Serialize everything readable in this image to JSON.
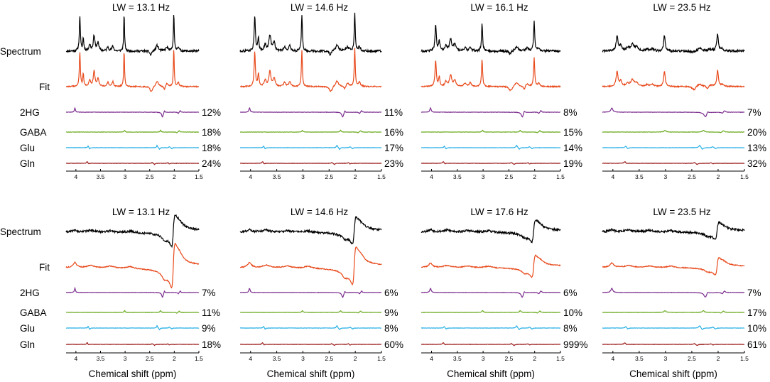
{
  "figure": {
    "row_labels": [
      "Spectrum",
      "Fit",
      "2HG",
      "GABA",
      "Glu",
      "Gln"
    ],
    "x_axis_label": "Chemical shift (ppm)",
    "x_ticks": [
      "4",
      "3.5",
      "3",
      "2.5",
      "2",
      "1.5"
    ]
  },
  "colors": {
    "spectrum": "#000000",
    "fit": "#e84a1c",
    "2HG": "#7b2d8e",
    "GABA": "#6aaa1f",
    "Glu": "#2ab0e6",
    "Gln": "#9b1b1b"
  },
  "chart_data": [
    {
      "type": "line",
      "row": "top",
      "title": "LW = 13.1 Hz",
      "xlabel": "",
      "xlim": [
        4.2,
        1.5
      ],
      "x_reversed": true,
      "metabolite_crlb": [
        {
          "name": "2HG",
          "value": "12%"
        },
        {
          "name": "GABA",
          "value": "18%"
        },
        {
          "name": "Glu",
          "value": "18%"
        },
        {
          "name": "Gln",
          "value": "24%"
        }
      ]
    },
    {
      "type": "line",
      "row": "top",
      "title": "LW = 14.6 Hz",
      "xlabel": "",
      "xlim": [
        4.2,
        1.5
      ],
      "x_reversed": true,
      "metabolite_crlb": [
        {
          "name": "2HG",
          "value": "11%"
        },
        {
          "name": "GABA",
          "value": "16%"
        },
        {
          "name": "Glu",
          "value": "17%"
        },
        {
          "name": "Gln",
          "value": "23%"
        }
      ]
    },
    {
      "type": "line",
      "row": "top",
      "title": "LW = 16.1 Hz",
      "xlabel": "",
      "xlim": [
        4.2,
        1.5
      ],
      "x_reversed": true,
      "metabolite_crlb": [
        {
          "name": "2HG",
          "value": "8%"
        },
        {
          "name": "GABA",
          "value": "15%"
        },
        {
          "name": "Glu",
          "value": "14%"
        },
        {
          "name": "Gln",
          "value": "19%"
        }
      ]
    },
    {
      "type": "line",
      "row": "top",
      "title": "LW = 23.5 Hz",
      "xlabel": "",
      "xlim": [
        4.2,
        1.5
      ],
      "x_reversed": true,
      "metabolite_crlb": [
        {
          "name": "2HG",
          "value": "7%"
        },
        {
          "name": "GABA",
          "value": "20%"
        },
        {
          "name": "Glu",
          "value": "13%"
        },
        {
          "name": "Gln",
          "value": "32%"
        }
      ]
    },
    {
      "type": "line",
      "row": "bottom",
      "title": "LW = 13.1 Hz",
      "xlabel": "Chemical shift (ppm)",
      "xlim": [
        4.2,
        1.5
      ],
      "x_reversed": true,
      "metabolite_crlb": [
        {
          "name": "2HG",
          "value": "7%"
        },
        {
          "name": "GABA",
          "value": "11%"
        },
        {
          "name": "Glu",
          "value": "9%"
        },
        {
          "name": "Gln",
          "value": "18%"
        }
      ]
    },
    {
      "type": "line",
      "row": "bottom",
      "title": "LW = 14.6 Hz",
      "xlabel": "Chemical shift (ppm)",
      "xlim": [
        4.2,
        1.5
      ],
      "x_reversed": true,
      "metabolite_crlb": [
        {
          "name": "2HG",
          "value": "6%"
        },
        {
          "name": "GABA",
          "value": "9%"
        },
        {
          "name": "Glu",
          "value": "8%"
        },
        {
          "name": "Gln",
          "value": "60%"
        }
      ]
    },
    {
      "type": "line",
      "row": "bottom",
      "title": "LW = 17.6 Hz",
      "xlabel": "Chemical shift (ppm)",
      "xlim": [
        4.2,
        1.5
      ],
      "x_reversed": true,
      "metabolite_crlb": [
        {
          "name": "2HG",
          "value": "6%"
        },
        {
          "name": "GABA",
          "value": "10%"
        },
        {
          "name": "Glu",
          "value": "8%"
        },
        {
          "name": "Gln",
          "value": "999%"
        }
      ]
    },
    {
      "type": "line",
      "row": "bottom",
      "title": "LW = 23.5 Hz",
      "xlabel": "Chemical shift (ppm)",
      "xlim": [
        4.2,
        1.5
      ],
      "x_reversed": true,
      "metabolite_crlb": [
        {
          "name": "2HG",
          "value": "7%"
        },
        {
          "name": "GABA",
          "value": "17%"
        },
        {
          "name": "Glu",
          "value": "10%"
        },
        {
          "name": "Gln",
          "value": "61%"
        }
      ]
    }
  ]
}
